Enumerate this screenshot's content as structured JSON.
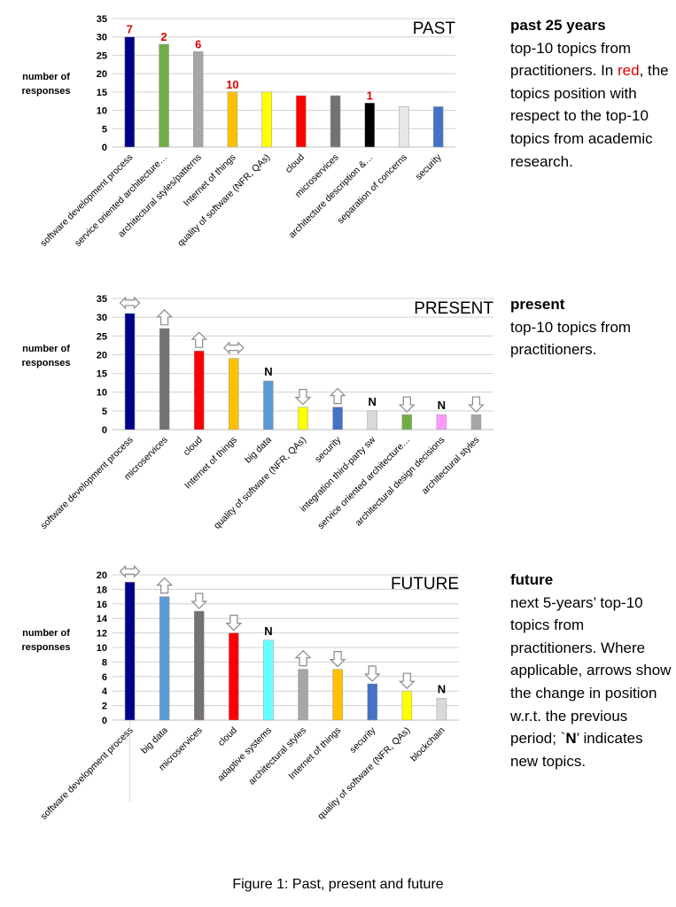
{
  "chart_data": [
    {
      "type": "bar",
      "title": "PAST",
      "ylabel": "number of responses",
      "ylim": [
        0,
        35
      ],
      "yticks": [
        0,
        5,
        10,
        15,
        20,
        25,
        30,
        35
      ],
      "categories": [
        "software development process",
        "service oriented architecture…",
        "architectural styles/patterns",
        "Internet of things",
        "quality of software (NFR, QAs)",
        "cloud",
        "microservices",
        "architecture description &…",
        "separation of concerns",
        "security"
      ],
      "values": [
        30,
        28,
        26,
        15,
        15,
        14,
        14,
        12,
        11,
        11
      ],
      "colors": [
        "#00008b",
        "#70ad47",
        "#a6a6a6",
        "#ffc000",
        "#ffff00",
        "#ff0000",
        "#767171",
        "#000000",
        "#e7e6e6",
        "#4472c4"
      ],
      "annotations": [
        "7",
        "2",
        "6",
        "10",
        "",
        "",
        "",
        "1",
        "",
        ""
      ]
    },
    {
      "type": "bar",
      "title": "PRESENT",
      "ylabel": "number of responses",
      "ylim": [
        0,
        35
      ],
      "yticks": [
        0,
        5,
        10,
        15,
        20,
        25,
        30,
        35
      ],
      "categories": [
        "software development process",
        "microservices",
        "cloud",
        "Internet of things",
        "big data",
        "quality of software (NFR, QAs)",
        "security",
        "integration third-party sw",
        "service oriented architecture…",
        "architectural design decisions",
        "architectural styles"
      ],
      "values": [
        31,
        27,
        21,
        19,
        13,
        6,
        6,
        5,
        4,
        4,
        4
      ],
      "colors": [
        "#00008b",
        "#767171",
        "#ff0000",
        "#ffc000",
        "#5b9bd5",
        "#ffff00",
        "#4472c4",
        "#d9d9d9",
        "#70ad47",
        "#ff99ff",
        "#a6a6a6"
      ],
      "markers": [
        "same",
        "up",
        "up",
        "same",
        "new",
        "down",
        "up",
        "new",
        "down",
        "new",
        "down"
      ]
    },
    {
      "type": "bar",
      "title": "FUTURE",
      "ylabel": "number of responses",
      "ylim": [
        0,
        20
      ],
      "yticks": [
        0,
        2,
        4,
        6,
        8,
        10,
        12,
        14,
        16,
        18,
        20
      ],
      "categories": [
        "software development process",
        "big data",
        "microservices",
        "cloud",
        "adaptive systems",
        "architectural styles",
        "Internet of things",
        "security",
        "quality of software (NFR, QAs)",
        "blockchain"
      ],
      "values": [
        19,
        17,
        15,
        12,
        11,
        7,
        7,
        5,
        4,
        3
      ],
      "colors": [
        "#00008b",
        "#5b9bd5",
        "#767171",
        "#ff0000",
        "#66ffff",
        "#a6a6a6",
        "#ffc000",
        "#4472c4",
        "#ffff00",
        "#d9d9d9"
      ],
      "markers": [
        "same",
        "up",
        "down",
        "down",
        "new",
        "up",
        "down",
        "down",
        "down",
        "new"
      ]
    }
  ],
  "new_marker": "N",
  "side": {
    "past_heading": "past 25 years",
    "past_line1": "top-10 topics from practitioners.",
    "past_in": "In",
    "past_red": "red",
    "past_line2": ", the topics position with respect to the top-10 topics from academic research.",
    "present_heading": "present",
    "present_line": "top-10 topics from practitioners.",
    "future_heading": "future",
    "future_line1": "next 5-years’ top-10 topics from practitioners. Where applicable, arrows show the change in position w.r.t. the previous period; `",
    "future_n": "N",
    "future_line2": "’ indicates new topics."
  },
  "caption": "Figure 1: Past, present and future"
}
